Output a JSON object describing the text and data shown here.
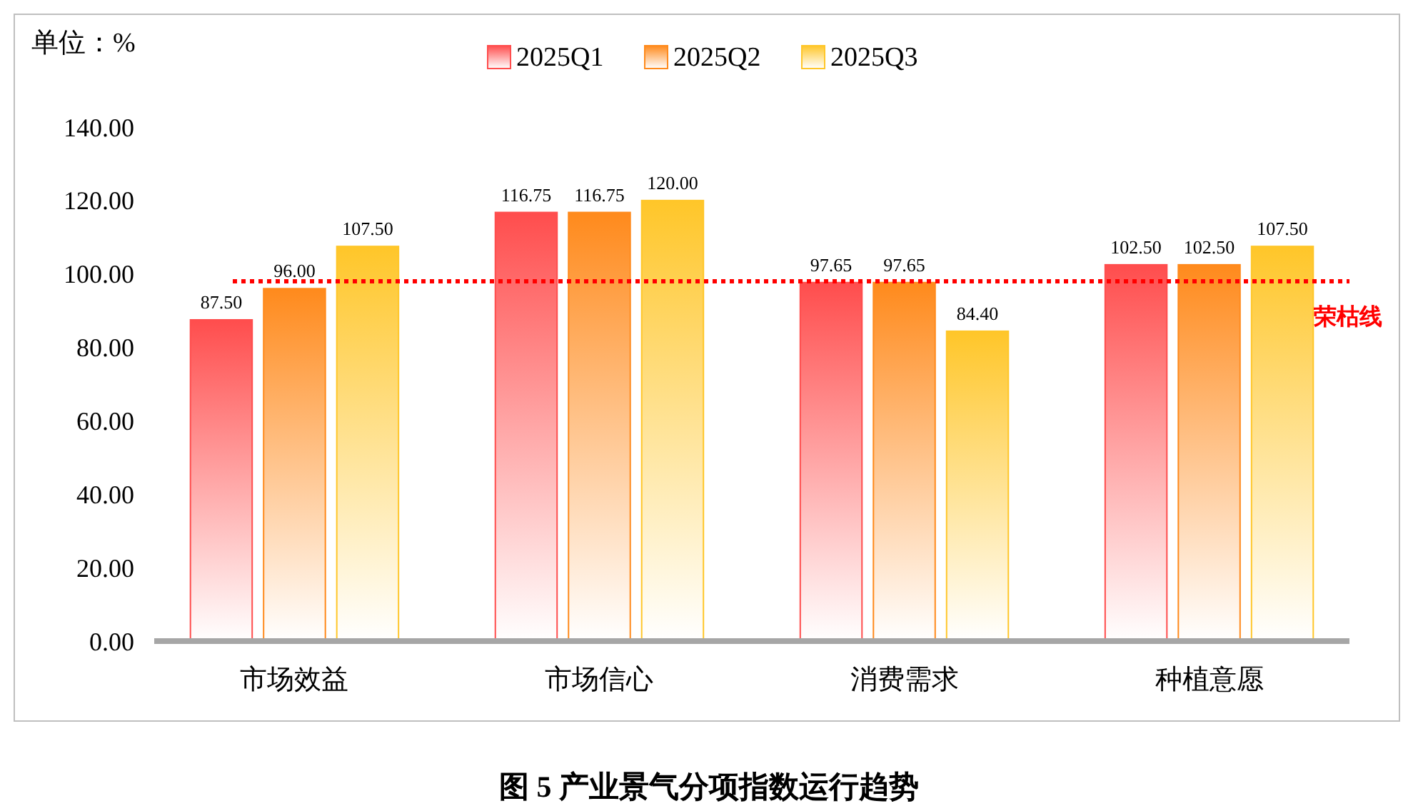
{
  "chart_data": {
    "type": "bar",
    "title": "图 5  产业景气分项指数运行趋势",
    "ylabel": "单位：%",
    "categories": [
      "市场效益",
      "市场信心",
      "消费需求",
      "种植意愿"
    ],
    "series": [
      {
        "name": "2025Q1",
        "color": "#ff4d4d",
        "values": [
          87.5,
          116.75,
          97.65,
          102.5
        ],
        "value_labels": [
          "87.50",
          "116.75",
          "97.65",
          "102.50"
        ]
      },
      {
        "name": "2025Q2",
        "color": "#ff8a1c",
        "values": [
          96,
          116.75,
          97.65,
          102.5
        ],
        "value_labels": [
          "96.00",
          "116.75",
          "97.65",
          "102.50"
        ]
      },
      {
        "name": "2025Q3",
        "color": "#ffc629",
        "values": [
          107.5,
          120,
          84.4,
          107.5
        ],
        "value_labels": [
          "107.50",
          "120.00",
          "84.40",
          "107.50"
        ]
      }
    ],
    "ylim": [
      0,
      140
    ],
    "yticks": [
      {
        "value": 0,
        "label": "0.00"
      },
      {
        "value": 20,
        "label": "20.00"
      },
      {
        "value": 40,
        "label": "40.00"
      },
      {
        "value": 60,
        "label": "60.00"
      },
      {
        "value": 80,
        "label": "80.00"
      },
      {
        "value": 100,
        "label": "100.00"
      },
      {
        "value": 120,
        "label": "120.00"
      },
      {
        "value": 140,
        "label": "140.00"
      }
    ],
    "ref_lines": [
      {
        "axis": "y",
        "value": 98,
        "label": "荣枯线",
        "color": "#ff0000",
        "line_style": "dotted"
      }
    ],
    "legend": "top",
    "grid": false
  }
}
